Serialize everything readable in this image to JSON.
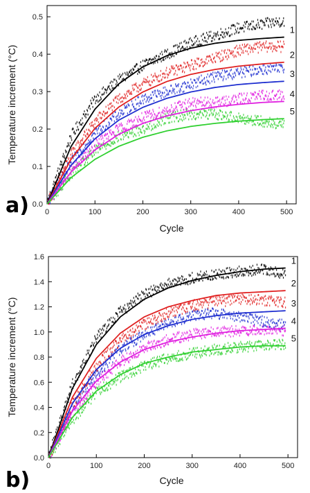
{
  "chart_data": [
    {
      "type": "scatter",
      "panel_label": "a)",
      "xlabel": "Cycle",
      "ylabel": "Temperature increment (°C)",
      "xlim": [
        0,
        520
      ],
      "ylim": [
        0,
        0.53
      ],
      "xticks": [
        0,
        100,
        200,
        300,
        400,
        500
      ],
      "yticks": [
        0.0,
        0.1,
        0.2,
        0.3,
        0.4,
        0.5
      ],
      "series": [
        {
          "name": "1",
          "color": "#000000",
          "fit_x": [
            0,
            50,
            100,
            150,
            200,
            250,
            300,
            350,
            400,
            450,
            500
          ],
          "fit_y": [
            0,
            0.153,
            0.253,
            0.321,
            0.366,
            0.396,
            0.416,
            0.429,
            0.437,
            0.442,
            0.446
          ],
          "scatter_y": [
            0,
            0.18,
            0.28,
            0.33,
            0.37,
            0.4,
            0.43,
            0.45,
            0.47,
            0.48,
            0.49
          ]
        },
        {
          "name": "2",
          "color": "#e02020",
          "fit_x": [
            0,
            50,
            100,
            150,
            200,
            250,
            300,
            350,
            400,
            450,
            500
          ],
          "fit_y": [
            0,
            0.119,
            0.202,
            0.259,
            0.299,
            0.327,
            0.346,
            0.359,
            0.368,
            0.374,
            0.379
          ],
          "scatter_y": [
            0,
            0.13,
            0.22,
            0.28,
            0.32,
            0.35,
            0.37,
            0.39,
            0.41,
            0.42,
            0.42
          ]
        },
        {
          "name": "3",
          "color": "#1f2fd0",
          "fit_x": [
            0,
            50,
            100,
            150,
            200,
            250,
            300,
            350,
            400,
            450,
            500
          ],
          "fit_y": [
            0,
            0.103,
            0.174,
            0.224,
            0.258,
            0.282,
            0.299,
            0.311,
            0.319,
            0.324,
            0.328
          ],
          "scatter_y": [
            0,
            0.11,
            0.19,
            0.24,
            0.28,
            0.3,
            0.32,
            0.34,
            0.35,
            0.36,
            0.36
          ]
        },
        {
          "name": "4",
          "color": "#e020e0",
          "fit_x": [
            0,
            50,
            100,
            150,
            200,
            250,
            300,
            350,
            400,
            450,
            500
          ],
          "fit_y": [
            0,
            0.085,
            0.144,
            0.186,
            0.215,
            0.235,
            0.249,
            0.259,
            0.266,
            0.271,
            0.274
          ],
          "scatter_y": [
            0,
            0.09,
            0.16,
            0.2,
            0.23,
            0.25,
            0.27,
            0.27,
            0.28,
            0.29,
            0.29
          ]
        },
        {
          "name": "5",
          "color": "#30d030",
          "fit_x": [
            0,
            50,
            100,
            150,
            200,
            250,
            300,
            350,
            400,
            450,
            500
          ],
          "fit_y": [
            0,
            0.07,
            0.119,
            0.154,
            0.178,
            0.195,
            0.207,
            0.215,
            0.221,
            0.225,
            0.228
          ],
          "scatter_y": [
            0,
            0.08,
            0.14,
            0.18,
            0.2,
            0.23,
            0.24,
            0.24,
            0.23,
            0.22,
            0.21
          ]
        }
      ]
    },
    {
      "type": "scatter",
      "panel_label": "b)",
      "xlabel": "Cycle",
      "ylabel": "Temperature increment (°C)",
      "xlim": [
        0,
        520
      ],
      "ylim": [
        0,
        1.6
      ],
      "xticks": [
        0,
        100,
        200,
        300,
        400,
        500
      ],
      "yticks": [
        0.0,
        0.2,
        0.4,
        0.6,
        0.8,
        1.0,
        1.2,
        1.4,
        1.6
      ],
      "series": [
        {
          "name": "1",
          "color": "#000000",
          "fit_x": [
            0,
            50,
            100,
            150,
            200,
            250,
            300,
            350,
            400,
            450,
            500
          ],
          "fit_y": [
            0,
            0.55,
            0.9,
            1.12,
            1.26,
            1.35,
            1.41,
            1.45,
            1.48,
            1.5,
            1.51
          ],
          "scatter_y": [
            0,
            0.58,
            0.95,
            1.16,
            1.3,
            1.38,
            1.43,
            1.46,
            1.48,
            1.5,
            1.46
          ]
        },
        {
          "name": "2",
          "color": "#e02020",
          "fit_x": [
            0,
            50,
            100,
            150,
            200,
            250,
            300,
            350,
            400,
            450,
            500
          ],
          "fit_y": [
            0,
            0.48,
            0.79,
            0.99,
            1.12,
            1.2,
            1.25,
            1.29,
            1.31,
            1.32,
            1.33
          ],
          "scatter_y": [
            0,
            0.42,
            0.73,
            0.93,
            1.06,
            1.15,
            1.21,
            1.24,
            1.26,
            1.25,
            1.23
          ]
        },
        {
          "name": "3",
          "color": "#1f2fd0",
          "fit_x": [
            0,
            50,
            100,
            150,
            200,
            250,
            300,
            350,
            400,
            450,
            500
          ],
          "fit_y": [
            0,
            0.43,
            0.7,
            0.87,
            0.98,
            1.05,
            1.1,
            1.13,
            1.15,
            1.16,
            1.17
          ],
          "scatter_y": [
            0,
            0.4,
            0.67,
            0.86,
            0.98,
            1.07,
            1.13,
            1.15,
            1.12,
            1.08,
            1.05
          ]
        },
        {
          "name": "4",
          "color": "#e020e0",
          "fit_x": [
            0,
            50,
            100,
            150,
            200,
            250,
            300,
            350,
            400,
            450,
            500
          ],
          "fit_y": [
            0,
            0.37,
            0.61,
            0.76,
            0.86,
            0.92,
            0.96,
            0.99,
            1.01,
            1.02,
            1.03
          ],
          "scatter_y": [
            0,
            0.36,
            0.6,
            0.76,
            0.87,
            0.94,
            0.98,
            1.0,
            1.01,
            1.02,
            1.01
          ]
        },
        {
          "name": "5",
          "color": "#30d030",
          "fit_x": [
            0,
            50,
            100,
            150,
            200,
            250,
            300,
            350,
            400,
            450,
            500
          ],
          "fit_y": [
            0,
            0.32,
            0.53,
            0.66,
            0.75,
            0.8,
            0.84,
            0.86,
            0.88,
            0.89,
            0.89
          ],
          "scatter_y": [
            0,
            0.3,
            0.52,
            0.64,
            0.73,
            0.79,
            0.83,
            0.86,
            0.88,
            0.89,
            0.9
          ]
        }
      ]
    }
  ]
}
